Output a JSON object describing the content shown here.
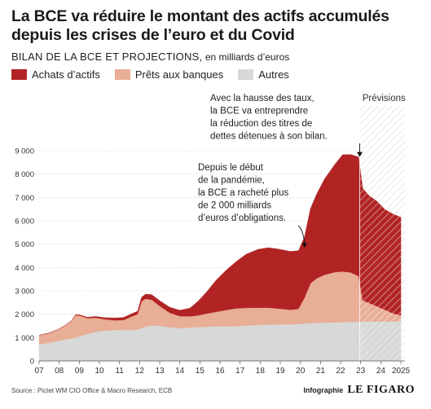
{
  "title": "La BCE va réduire le montant des actifs accumulés depuis les crises de l’euro et du Covid",
  "subtitle_caps": "BILAN DE LA BCE ET PROJECTIONS,",
  "subtitle_unit": "en milliards d’euros",
  "legend": [
    {
      "label": "Achats d’actifs",
      "color": "#b22424"
    },
    {
      "label": "Prêts aux banques",
      "color": "#e8ae96"
    },
    {
      "label": "Autres",
      "color": "#d8d8d8"
    }
  ],
  "source": "Source : Pictet WM CIO Office & Macro Research, ECB",
  "credit_label": "Infographie",
  "credit_logo": "LE FIGARO",
  "chart_data": {
    "type": "area",
    "stacked": true,
    "x_unit": "year",
    "x_tick_labels": [
      "07",
      "08",
      "09",
      "10",
      "11",
      "12",
      "13",
      "14",
      "15",
      "16",
      "17",
      "18",
      "19",
      "20",
      "21",
      "22",
      "23",
      "24",
      "2025"
    ],
    "x_range": [
      2007,
      2025.2
    ],
    "y_ticks": [
      0,
      1000,
      2000,
      3000,
      4000,
      5000,
      6000,
      7000,
      8000,
      9000
    ],
    "y_tick_labels": [
      "0",
      "1 000",
      "2 000",
      "3 000",
      "4 000",
      "5 000",
      "6 000",
      "7 000",
      "8 000",
      "9 000"
    ],
    "ylim": [
      0,
      9200
    ],
    "grid": true,
    "forecast": {
      "label": "Prévisions",
      "start": 2022.95,
      "end": 2025.2
    },
    "x": [
      2007,
      2007.5,
      2007.9,
      2008.3,
      2008.6,
      2008.8,
      2009,
      2009.4,
      2009.8,
      2010.3,
      2010.8,
      2011.2,
      2011.6,
      2011.9,
      2012.1,
      2012.3,
      2012.6,
      2013,
      2013.5,
      2014,
      2014.5,
      2014.9,
      2015.3,
      2015.8,
      2016.3,
      2016.8,
      2017.3,
      2017.9,
      2018.4,
      2018.9,
      2019.5,
      2019.9,
      2020.2,
      2020.5,
      2020.8,
      2021.2,
      2021.7,
      2022.1,
      2022.5,
      2022.9,
      2023.1,
      2023.4,
      2023.8,
      2024.2,
      2024.6,
      2025
    ],
    "series": [
      {
        "name": "Autres",
        "color": "#d8d8d8",
        "values": [
          700,
          780,
          850,
          920,
          960,
          1000,
          1050,
          1150,
          1250,
          1300,
          1320,
          1330,
          1320,
          1350,
          1400,
          1480,
          1520,
          1500,
          1440,
          1400,
          1430,
          1450,
          1460,
          1480,
          1480,
          1490,
          1510,
          1540,
          1560,
          1560,
          1570,
          1580,
          1600,
          1620,
          1630,
          1640,
          1650,
          1660,
          1670,
          1680,
          1690,
          1690,
          1690,
          1690,
          1690,
          1700
        ]
      },
      {
        "name": "Prêts aux banques",
        "color": "#e8ae96",
        "values": [
          400,
          420,
          480,
          600,
          750,
          950,
          900,
          680,
          600,
          480,
          420,
          420,
          580,
          650,
          1150,
          1180,
          1100,
          850,
          620,
          520,
          480,
          500,
          560,
          620,
          700,
          760,
          760,
          740,
          720,
          680,
          620,
          650,
          1100,
          1700,
          1900,
          2050,
          2150,
          2170,
          2120,
          1950,
          900,
          800,
          650,
          500,
          350,
          250
        ]
      },
      {
        "name": "Achats d’actifs",
        "color": "#b22424",
        "values": [
          0,
          0,
          0,
          0,
          0,
          20,
          30,
          40,
          55,
          70,
          100,
          110,
          120,
          130,
          180,
          200,
          220,
          230,
          240,
          250,
          350,
          600,
          900,
          1350,
          1700,
          2000,
          2300,
          2500,
          2570,
          2550,
          2500,
          2490,
          2600,
          3200,
          3600,
          4100,
          4600,
          5000,
          5050,
          5100,
          4800,
          4600,
          4500,
          4300,
          4250,
          4200
        ]
      }
    ],
    "annotations": [
      {
        "lines": [
          "Avec la hausse des taux,",
          "la BCE va entreprendre",
          "la réduction des titres de",
          "dettes détenues à son bilan."
        ],
        "target_x": 2022.95,
        "target_y": 8700
      },
      {
        "lines": [
          "Depuis le début",
          "de la pandémie,",
          "la BCE a racheté plus",
          "de 2 000 milliards",
          "d’euros d’obligations."
        ],
        "target_x": 2020.1,
        "target_y": 4750
      }
    ]
  }
}
